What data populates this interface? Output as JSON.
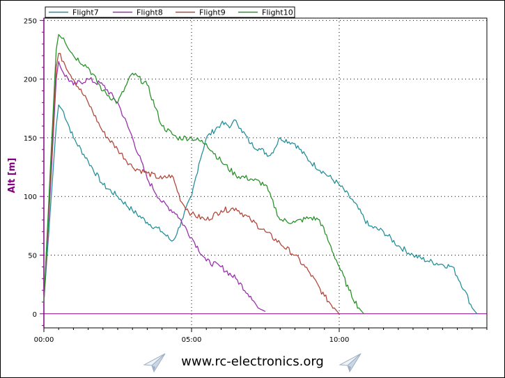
{
  "footer": {
    "site_text": "www.rc-electronics.org",
    "left_icon": "paper-plane-icon",
    "right_icon": "paper-plane-icon"
  },
  "chart_data": {
    "type": "line",
    "title": "",
    "xlabel": "",
    "ylabel": "Alt [m]",
    "x_unit": "mm:ss",
    "xlim": [
      "00:00",
      "15:00"
    ],
    "ylim": [
      -12,
      252
    ],
    "y_ticks": [
      "0",
      "50",
      "100",
      "150",
      "200",
      "250"
    ],
    "x_ticks": [
      "00:00",
      "05:00",
      "10:00"
    ],
    "grid": true,
    "legend": "top-left",
    "colors": {
      "Flight7": "#26909a",
      "Flight8": "#9a2fad",
      "Flight9": "#b2473c",
      "Flight10": "#2a922a",
      "axis": "#800080",
      "zero_line": "#800080"
    },
    "series": [
      {
        "name": "Flight7",
        "x": [
          "00:00",
          "00:15",
          "00:25",
          "00:30",
          "00:40",
          "01:00",
          "01:30",
          "02:00",
          "02:30",
          "03:00",
          "03:30",
          "04:00",
          "04:20",
          "04:30",
          "04:40",
          "05:00",
          "05:15",
          "05:30",
          "06:00",
          "06:20",
          "06:30",
          "06:40",
          "07:00",
          "07:20",
          "07:40",
          "08:00",
          "08:30",
          "09:00",
          "09:30",
          "10:00",
          "10:30",
          "11:00",
          "11:30",
          "12:00",
          "12:30",
          "13:00",
          "13:30",
          "13:50",
          "14:15",
          "14:30",
          "14:40"
        ],
        "y": [
          10,
          100,
          160,
          178,
          172,
          150,
          130,
          110,
          100,
          88,
          78,
          70,
          62,
          68,
          80,
          100,
          128,
          150,
          162,
          160,
          165,
          158,
          145,
          140,
          135,
          150,
          145,
          130,
          120,
          110,
          95,
          75,
          70,
          58,
          50,
          45,
          42,
          40,
          20,
          5,
          0
        ]
      },
      {
        "name": "Flight8",
        "x": [
          "00:00",
          "00:15",
          "00:25",
          "00:30",
          "00:40",
          "01:00",
          "01:30",
          "02:00",
          "02:30",
          "03:00",
          "03:30",
          "04:00",
          "04:30",
          "05:00",
          "05:30",
          "06:00",
          "06:30",
          "07:00",
          "07:15",
          "07:30"
        ],
        "y": [
          10,
          120,
          200,
          215,
          205,
          195,
          200,
          195,
          180,
          150,
          115,
          95,
          85,
          65,
          45,
          40,
          30,
          15,
          5,
          2
        ]
      },
      {
        "name": "Flight9",
        "x": [
          "00:00",
          "00:15",
          "00:25",
          "00:30",
          "00:40",
          "01:00",
          "01:30",
          "02:00",
          "02:30",
          "03:00",
          "03:30",
          "04:00",
          "04:20",
          "04:40",
          "05:00",
          "05:30",
          "06:00",
          "06:30",
          "07:00",
          "07:30",
          "08:00",
          "08:30",
          "09:00",
          "09:30",
          "09:50",
          "10:00"
        ],
        "y": [
          10,
          130,
          210,
          222,
          215,
          200,
          180,
          155,
          140,
          125,
          120,
          115,
          118,
          95,
          85,
          80,
          88,
          90,
          80,
          70,
          60,
          50,
          35,
          15,
          5,
          0
        ]
      },
      {
        "name": "Flight10",
        "x": [
          "00:00",
          "00:15",
          "00:25",
          "00:30",
          "00:40",
          "01:00",
          "01:30",
          "02:00",
          "02:30",
          "03:00",
          "03:30",
          "04:00",
          "04:30",
          "05:00",
          "05:30",
          "06:00",
          "06:30",
          "07:00",
          "07:30",
          "08:00",
          "08:30",
          "09:00",
          "09:20",
          "09:40",
          "10:00",
          "10:20",
          "10:40",
          "10:50"
        ],
        "y": [
          10,
          140,
          225,
          238,
          235,
          220,
          210,
          190,
          180,
          205,
          195,
          160,
          150,
          150,
          145,
          130,
          118,
          115,
          110,
          80,
          78,
          82,
          80,
          60,
          40,
          20,
          5,
          0
        ]
      }
    ]
  }
}
